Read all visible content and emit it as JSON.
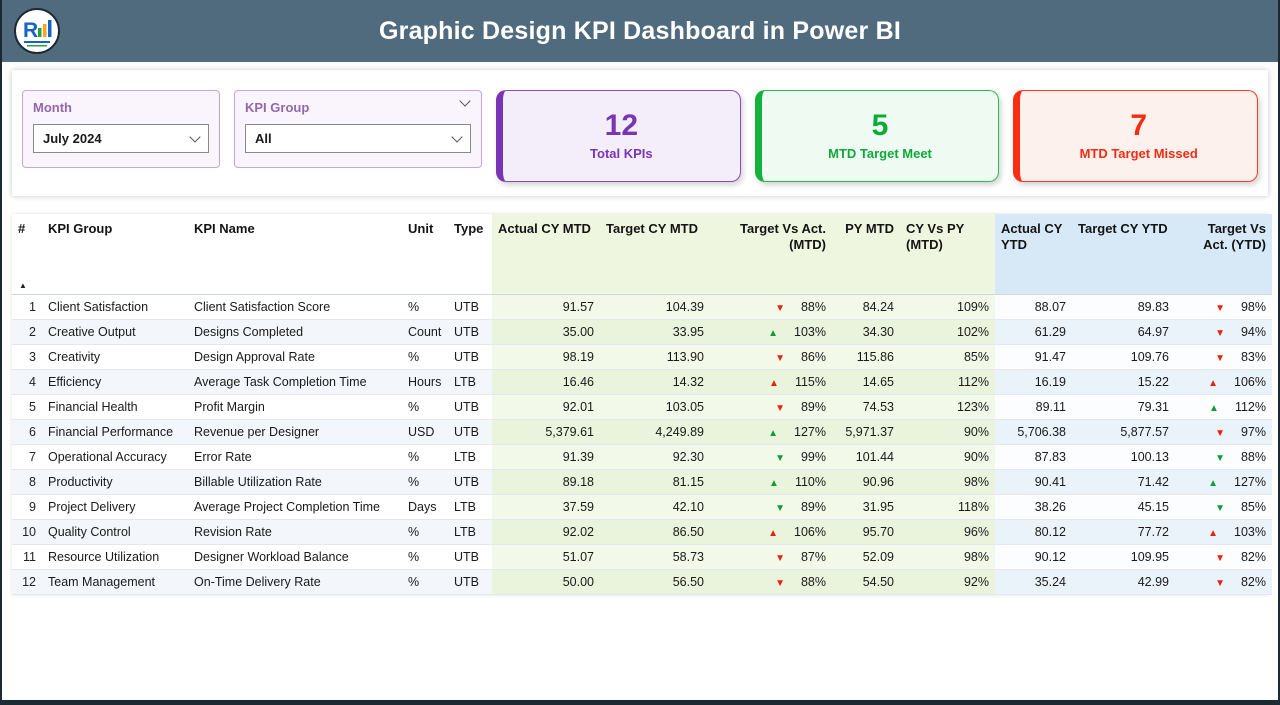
{
  "header": {
    "title": "Graphic Design KPI Dashboard in Power BI"
  },
  "filters": {
    "month": {
      "label": "Month",
      "value": "July 2024"
    },
    "kpi_group": {
      "label": "KPI Group",
      "value": "All"
    }
  },
  "kpi_cards": [
    {
      "value": "12",
      "label": "Total KPIs",
      "accent": "#7a35b5"
    },
    {
      "value": "5",
      "label": "MTD Target Meet",
      "accent": "#0eaa38"
    },
    {
      "value": "7",
      "label": "MTD Target Missed",
      "accent": "#f42c12"
    }
  ],
  "colors": {
    "header_bar": "#506b7d",
    "mtd_section_header": "#eff6e0",
    "ytd_section_header": "#d7e9f7",
    "arrow_red": "#e8220e",
    "arrow_green": "#0e9e38"
  },
  "table": {
    "sort_indicator": "▲",
    "columns": [
      "#",
      "KPI Group",
      "KPI Name",
      "Unit",
      "Type",
      "Actual CY MTD",
      "Target CY MTD",
      "Target Vs Act. (MTD)",
      "PY MTD",
      "CY Vs PY (MTD)",
      "Actual CY YTD",
      "Target CY YTD",
      "Target Vs Act. (YTD)"
    ],
    "rows": [
      {
        "num": "1",
        "group": "Client Satisfaction",
        "name": "Client Satisfaction Score",
        "unit": "%",
        "type": "UTB",
        "actual_cy_mtd": "91.57",
        "target_cy_mtd": "104.39",
        "target_vs_act_mtd": {
          "arrow": "▼",
          "color": "red",
          "pct": "88%"
        },
        "py_mtd": "84.24",
        "cy_vs_py_mtd": "109%",
        "actual_cy_ytd": "88.07",
        "target_cy_ytd": "89.83",
        "target_vs_act_ytd": {
          "arrow": "▼",
          "color": "red",
          "pct": "98%"
        }
      },
      {
        "num": "2",
        "group": "Creative Output",
        "name": "Designs Completed",
        "unit": "Count",
        "type": "UTB",
        "actual_cy_mtd": "35.00",
        "target_cy_mtd": "33.95",
        "target_vs_act_mtd": {
          "arrow": "▲",
          "color": "green",
          "pct": "103%"
        },
        "py_mtd": "34.30",
        "cy_vs_py_mtd": "102%",
        "actual_cy_ytd": "61.29",
        "target_cy_ytd": "64.97",
        "target_vs_act_ytd": {
          "arrow": "▼",
          "color": "red",
          "pct": "94%"
        }
      },
      {
        "num": "3",
        "group": "Creativity",
        "name": "Design Approval Rate",
        "unit": "%",
        "type": "UTB",
        "actual_cy_mtd": "98.19",
        "target_cy_mtd": "113.90",
        "target_vs_act_mtd": {
          "arrow": "▼",
          "color": "red",
          "pct": "86%"
        },
        "py_mtd": "115.86",
        "cy_vs_py_mtd": "85%",
        "actual_cy_ytd": "91.47",
        "target_cy_ytd": "109.76",
        "target_vs_act_ytd": {
          "arrow": "▼",
          "color": "red",
          "pct": "83%"
        }
      },
      {
        "num": "4",
        "group": "Efficiency",
        "name": "Average Task Completion Time",
        "unit": "Hours",
        "type": "LTB",
        "actual_cy_mtd": "16.46",
        "target_cy_mtd": "14.32",
        "target_vs_act_mtd": {
          "arrow": "▲",
          "color": "red",
          "pct": "115%"
        },
        "py_mtd": "14.65",
        "cy_vs_py_mtd": "112%",
        "actual_cy_ytd": "16.19",
        "target_cy_ytd": "15.22",
        "target_vs_act_ytd": {
          "arrow": "▲",
          "color": "red",
          "pct": "106%"
        }
      },
      {
        "num": "5",
        "group": "Financial Health",
        "name": "Profit Margin",
        "unit": "%",
        "type": "UTB",
        "actual_cy_mtd": "92.01",
        "target_cy_mtd": "103.05",
        "target_vs_act_mtd": {
          "arrow": "▼",
          "color": "red",
          "pct": "89%"
        },
        "py_mtd": "74.53",
        "cy_vs_py_mtd": "123%",
        "actual_cy_ytd": "89.11",
        "target_cy_ytd": "79.31",
        "target_vs_act_ytd": {
          "arrow": "▲",
          "color": "green",
          "pct": "112%"
        }
      },
      {
        "num": "6",
        "group": "Financial Performance",
        "name": "Revenue per Designer",
        "unit": "USD",
        "type": "UTB",
        "actual_cy_mtd": "5,379.61",
        "target_cy_mtd": "4,249.89",
        "target_vs_act_mtd": {
          "arrow": "▲",
          "color": "green",
          "pct": "127%"
        },
        "py_mtd": "5,971.37",
        "cy_vs_py_mtd": "90%",
        "actual_cy_ytd": "5,706.38",
        "target_cy_ytd": "5,877.57",
        "target_vs_act_ytd": {
          "arrow": "▼",
          "color": "red",
          "pct": "97%"
        }
      },
      {
        "num": "7",
        "group": "Operational Accuracy",
        "name": "Error Rate",
        "unit": "%",
        "type": "LTB",
        "actual_cy_mtd": "91.39",
        "target_cy_mtd": "92.30",
        "target_vs_act_mtd": {
          "arrow": "▼",
          "color": "green",
          "pct": "99%"
        },
        "py_mtd": "101.44",
        "cy_vs_py_mtd": "90%",
        "actual_cy_ytd": "87.83",
        "target_cy_ytd": "100.13",
        "target_vs_act_ytd": {
          "arrow": "▼",
          "color": "green",
          "pct": "88%"
        }
      },
      {
        "num": "8",
        "group": "Productivity",
        "name": "Billable Utilization Rate",
        "unit": "%",
        "type": "UTB",
        "actual_cy_mtd": "89.18",
        "target_cy_mtd": "81.15",
        "target_vs_act_mtd": {
          "arrow": "▲",
          "color": "green",
          "pct": "110%"
        },
        "py_mtd": "90.96",
        "cy_vs_py_mtd": "98%",
        "actual_cy_ytd": "90.41",
        "target_cy_ytd": "71.42",
        "target_vs_act_ytd": {
          "arrow": "▲",
          "color": "green",
          "pct": "127%"
        }
      },
      {
        "num": "9",
        "group": "Project Delivery",
        "name": "Average Project Completion Time",
        "unit": "Days",
        "type": "LTB",
        "actual_cy_mtd": "37.59",
        "target_cy_mtd": "42.10",
        "target_vs_act_mtd": {
          "arrow": "▼",
          "color": "green",
          "pct": "89%"
        },
        "py_mtd": "31.95",
        "cy_vs_py_mtd": "118%",
        "actual_cy_ytd": "38.26",
        "target_cy_ytd": "45.15",
        "target_vs_act_ytd": {
          "arrow": "▼",
          "color": "green",
          "pct": "85%"
        }
      },
      {
        "num": "10",
        "group": "Quality Control",
        "name": "Revision Rate",
        "unit": "%",
        "type": "LTB",
        "actual_cy_mtd": "92.02",
        "target_cy_mtd": "86.50",
        "target_vs_act_mtd": {
          "arrow": "▲",
          "color": "red",
          "pct": "106%"
        },
        "py_mtd": "95.70",
        "cy_vs_py_mtd": "96%",
        "actual_cy_ytd": "80.12",
        "target_cy_ytd": "77.72",
        "target_vs_act_ytd": {
          "arrow": "▲",
          "color": "red",
          "pct": "103%"
        }
      },
      {
        "num": "11",
        "group": "Resource Utilization",
        "name": "Designer Workload Balance",
        "unit": "%",
        "type": "UTB",
        "actual_cy_mtd": "51.07",
        "target_cy_mtd": "58.73",
        "target_vs_act_mtd": {
          "arrow": "▼",
          "color": "red",
          "pct": "87%"
        },
        "py_mtd": "52.09",
        "cy_vs_py_mtd": "98%",
        "actual_cy_ytd": "90.12",
        "target_cy_ytd": "109.95",
        "target_vs_act_ytd": {
          "arrow": "▼",
          "color": "red",
          "pct": "82%"
        }
      },
      {
        "num": "12",
        "group": "Team Management",
        "name": "On-Time Delivery Rate",
        "unit": "%",
        "type": "UTB",
        "actual_cy_mtd": "50.00",
        "target_cy_mtd": "56.50",
        "target_vs_act_mtd": {
          "arrow": "▼",
          "color": "red",
          "pct": "88%"
        },
        "py_mtd": "54.50",
        "cy_vs_py_mtd": "92%",
        "actual_cy_ytd": "35.24",
        "target_cy_ytd": "42.99",
        "target_vs_act_ytd": {
          "arrow": "▼",
          "color": "red",
          "pct": "82%"
        }
      }
    ]
  }
}
